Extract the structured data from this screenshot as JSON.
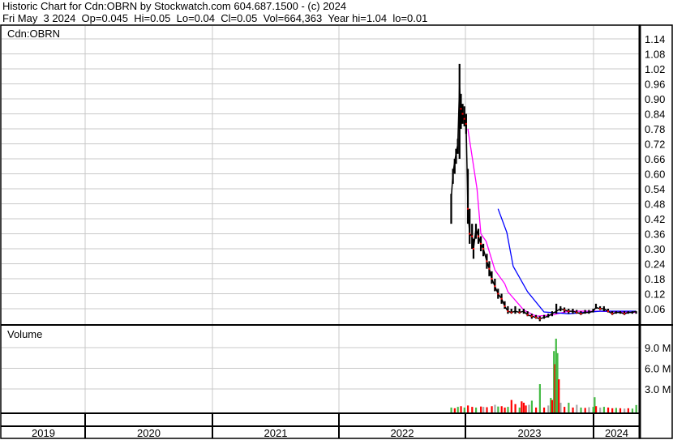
{
  "header": {
    "title": "Historic Chart for Cdn:OBRN by Stockwatch.com 604.687.1500 - (c) 2024",
    "quote": "Fri May  3 2024  Op=0.045  Hi=0.05  Lo=0.04  Cl=0.05  Vol=664,363  Year hi=1.04  lo=0.01"
  },
  "colors": {
    "price": "#000000",
    "close_mark": "#ff0000",
    "ma_short": "#ff00ff",
    "ma_long": "#0000ff",
    "vol_up": "#44bb44",
    "vol_down": "#ff0000",
    "vol_flat": "#a8a8a8",
    "grid": "#c8c8c8"
  },
  "chart_data": [
    {
      "type": "line",
      "title": "Cdn:OBRN",
      "grid": true,
      "y_ticks": [
        "1.14",
        "1.08",
        "1.02",
        "0.96",
        "0.90",
        "0.84",
        "0.78",
        "0.72",
        "0.66",
        "0.60",
        "0.54",
        "0.48",
        "0.42",
        "0.36",
        "0.30",
        "0.24",
        "0.18",
        "0.12",
        "0.06"
      ],
      "ylim": [
        0.0,
        1.14
      ],
      "x_ticks": [
        "2019",
        "2020",
        "2021",
        "2022",
        "2023",
        "2024"
      ],
      "price_columns": [
        "date",
        "high",
        "low",
        "close"
      ],
      "prices": [
        [
          "2022-11-21",
          0.52,
          0.4,
          0.5
        ],
        [
          "2022-11-26",
          0.62,
          0.56,
          0.6
        ],
        [
          "2022-12-01",
          0.66,
          0.6,
          0.65
        ],
        [
          "2022-12-05",
          0.7,
          0.64,
          0.68
        ],
        [
          "2022-12-10",
          0.74,
          0.68,
          0.72
        ],
        [
          "2022-12-15",
          1.04,
          0.66,
          0.95
        ],
        [
          "2022-12-19",
          0.92,
          0.78,
          0.86
        ],
        [
          "2022-12-24",
          0.88,
          0.8,
          0.84
        ],
        [
          "2022-12-29",
          0.87,
          0.79,
          0.82
        ],
        [
          "2023-01-03",
          0.84,
          0.76,
          0.8
        ],
        [
          "2023-01-08",
          0.62,
          0.4,
          0.46
        ],
        [
          "2023-01-13",
          0.46,
          0.32,
          0.36
        ],
        [
          "2023-01-20",
          0.4,
          0.3,
          0.35
        ],
        [
          "2023-01-24",
          0.34,
          0.26,
          0.3
        ],
        [
          "2023-01-31",
          0.4,
          0.34,
          0.38
        ],
        [
          "2023-02-07",
          0.38,
          0.32,
          0.35
        ],
        [
          "2023-02-14",
          0.35,
          0.29,
          0.32
        ],
        [
          "2023-02-21",
          0.32,
          0.27,
          0.3
        ],
        [
          "2023-03-03",
          0.28,
          0.22,
          0.25
        ],
        [
          "2023-03-10",
          0.25,
          0.19,
          0.22
        ],
        [
          "2023-03-17",
          0.21,
          0.16,
          0.18
        ],
        [
          "2023-03-26",
          0.18,
          0.13,
          0.15
        ],
        [
          "2023-04-04",
          0.14,
          0.1,
          0.12
        ],
        [
          "2023-04-14",
          0.12,
          0.08,
          0.1
        ],
        [
          "2023-04-23",
          0.09,
          0.06,
          0.07
        ],
        [
          "2023-05-02",
          0.07,
          0.04,
          0.05
        ],
        [
          "2023-05-12",
          0.06,
          0.04,
          0.045
        ],
        [
          "2023-05-23",
          0.07,
          0.04,
          0.05
        ],
        [
          "2023-06-04",
          0.06,
          0.04,
          0.045
        ],
        [
          "2023-06-16",
          0.06,
          0.04,
          0.05
        ],
        [
          "2023-06-27",
          0.05,
          0.03,
          0.035
        ],
        [
          "2023-07-09",
          0.04,
          0.02,
          0.03
        ],
        [
          "2023-07-21",
          0.035,
          0.02,
          0.025
        ],
        [
          "2023-08-01",
          0.03,
          0.01,
          0.02
        ],
        [
          "2023-08-13",
          0.035,
          0.02,
          0.025
        ],
        [
          "2023-08-25",
          0.04,
          0.025,
          0.03
        ],
        [
          "2023-09-05",
          0.05,
          0.03,
          0.04
        ],
        [
          "2023-09-17",
          0.08,
          0.04,
          0.05
        ],
        [
          "2023-09-29",
          0.07,
          0.05,
          0.06
        ],
        [
          "2023-10-10",
          0.065,
          0.045,
          0.055
        ],
        [
          "2023-10-22",
          0.06,
          0.04,
          0.05
        ],
        [
          "2023-11-03",
          0.06,
          0.04,
          0.05
        ],
        [
          "2023-11-14",
          0.055,
          0.04,
          0.045
        ],
        [
          "2023-11-26",
          0.05,
          0.035,
          0.04
        ],
        [
          "2023-12-08",
          0.055,
          0.04,
          0.045
        ],
        [
          "2023-12-19",
          0.055,
          0.04,
          0.045
        ],
        [
          "2023-12-31",
          0.06,
          0.045,
          0.05
        ],
        [
          "2024-01-08",
          0.08,
          0.06,
          0.065
        ],
        [
          "2024-01-20",
          0.07,
          0.055,
          0.06
        ],
        [
          "2024-01-31",
          0.07,
          0.05,
          0.06
        ],
        [
          "2024-02-12",
          0.06,
          0.045,
          0.05
        ],
        [
          "2024-02-24",
          0.05,
          0.035,
          0.04
        ],
        [
          "2024-03-06",
          0.05,
          0.04,
          0.045
        ],
        [
          "2024-03-18",
          0.05,
          0.04,
          0.045
        ],
        [
          "2024-03-30",
          0.05,
          0.035,
          0.04
        ],
        [
          "2024-04-10",
          0.05,
          0.04,
          0.045
        ],
        [
          "2024-04-22",
          0.05,
          0.04,
          0.045
        ],
        [
          "2024-05-03",
          0.05,
          0.04,
          0.05
        ]
      ],
      "series": [
        {
          "points": [
            [
              "2023-01-08",
              0.78
            ],
            [
              "2023-02-03",
              0.54
            ],
            [
              "2023-02-14",
              0.36
            ],
            [
              "2023-03-01",
              0.33
            ],
            [
              "2023-03-26",
              0.215
            ],
            [
              "2023-04-23",
              0.16
            ],
            [
              "2023-05-02",
              0.128
            ],
            [
              "2023-06-16",
              0.055
            ],
            [
              "2023-07-21",
              0.03
            ],
            [
              "2023-09-05",
              0.035
            ],
            [
              "2023-10-22",
              0.05
            ],
            [
              "2024-01-20",
              0.05
            ],
            [
              "2024-05-03",
              0.045
            ]
          ]
        },
        {
          "points": [
            [
              "2023-04-04",
              0.46
            ],
            [
              "2023-04-29",
              0.365
            ],
            [
              "2023-05-17",
              0.23
            ],
            [
              "2023-06-27",
              0.128
            ],
            [
              "2023-08-13",
              0.047
            ],
            [
              "2023-10-22",
              0.04
            ],
            [
              "2024-01-20",
              0.05
            ],
            [
              "2024-05-03",
              0.05
            ]
          ]
        }
      ]
    },
    {
      "type": "bar",
      "title": "Volume",
      "y_ticks": [
        "9.0 M",
        "6.0 M",
        "3.0 M"
      ],
      "ylim": [
        0,
        12000000
      ],
      "volume_columns": [
        "date",
        "volume",
        "direction"
      ],
      "volume": [
        [
          "2022-11-21",
          300000,
          "up"
        ],
        [
          "2022-12-01",
          200000,
          "down"
        ],
        [
          "2022-12-10",
          400000,
          "up"
        ],
        [
          "2022-12-19",
          500000,
          "down"
        ],
        [
          "2022-12-29",
          300000,
          "up"
        ],
        [
          "2023-01-08",
          600000,
          "down"
        ],
        [
          "2023-01-20",
          400000,
          "down"
        ],
        [
          "2023-01-31",
          300000,
          "up"
        ],
        [
          "2023-02-14",
          450000,
          "down"
        ],
        [
          "2023-02-21",
          400000,
          "flat"
        ],
        [
          "2023-03-03",
          350000,
          "down"
        ],
        [
          "2023-03-17",
          500000,
          "down"
        ],
        [
          "2023-03-26",
          700000,
          "flat"
        ],
        [
          "2023-04-04",
          450000,
          "up"
        ],
        [
          "2023-04-14",
          500000,
          "down"
        ],
        [
          "2023-04-23",
          300000,
          "down"
        ],
        [
          "2023-05-02",
          400000,
          "up"
        ],
        [
          "2023-05-12",
          1400000,
          "down"
        ],
        [
          "2023-05-23",
          800000,
          "down"
        ],
        [
          "2023-06-04",
          300000,
          "up"
        ],
        [
          "2023-06-10",
          1200000,
          "down"
        ],
        [
          "2023-06-16",
          1000000,
          "down"
        ],
        [
          "2023-06-22",
          600000,
          "down"
        ],
        [
          "2023-07-01",
          700000,
          "flat"
        ],
        [
          "2023-07-09",
          1300000,
          "up"
        ],
        [
          "2023-07-21",
          300000,
          "down"
        ],
        [
          "2023-08-01",
          3700000,
          "up"
        ],
        [
          "2023-08-13",
          300000,
          "down"
        ],
        [
          "2023-08-25",
          600000,
          "flat"
        ],
        [
          "2023-09-01",
          1700000,
          "up"
        ],
        [
          "2023-09-05",
          1400000,
          "down"
        ],
        [
          "2023-09-10",
          8500000,
          "up"
        ],
        [
          "2023-09-13",
          6600000,
          "down"
        ],
        [
          "2023-09-16",
          10300000,
          "up"
        ],
        [
          "2023-09-20",
          8200000,
          "up"
        ],
        [
          "2023-09-24",
          4400000,
          "down"
        ],
        [
          "2023-09-29",
          1000000,
          "flat"
        ],
        [
          "2023-10-10",
          400000,
          "down"
        ],
        [
          "2023-10-22",
          1000000,
          "up"
        ],
        [
          "2023-11-03",
          300000,
          "down"
        ],
        [
          "2023-11-14",
          700000,
          "flat"
        ],
        [
          "2023-11-26",
          300000,
          "up"
        ],
        [
          "2023-12-08",
          250000,
          "down"
        ],
        [
          "2023-12-19",
          350000,
          "flat"
        ],
        [
          "2023-12-31",
          400000,
          "up"
        ],
        [
          "2024-01-04",
          1800000,
          "up"
        ],
        [
          "2024-01-08",
          500000,
          "down"
        ],
        [
          "2024-01-20",
          300000,
          "flat"
        ],
        [
          "2024-01-31",
          400000,
          "up"
        ],
        [
          "2024-02-12",
          300000,
          "down"
        ],
        [
          "2024-02-24",
          200000,
          "down"
        ],
        [
          "2024-03-06",
          250000,
          "up"
        ],
        [
          "2024-03-18",
          200000,
          "down"
        ],
        [
          "2024-03-30",
          150000,
          "flat"
        ],
        [
          "2024-04-10",
          200000,
          "down"
        ],
        [
          "2024-04-22",
          150000,
          "up"
        ],
        [
          "2024-05-03",
          664363,
          "up"
        ]
      ]
    }
  ]
}
